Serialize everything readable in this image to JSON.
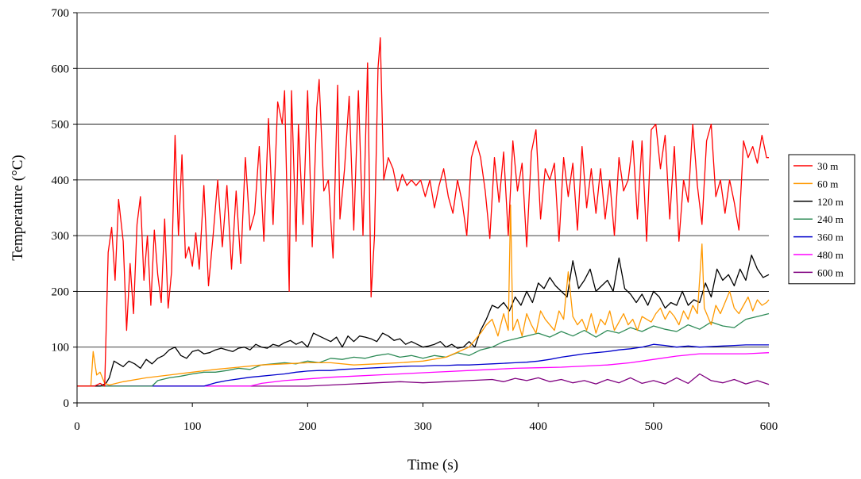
{
  "chart_data": {
    "type": "line",
    "title": "",
    "xlabel": "Time (s)",
    "ylabel": "Temperature (°C)",
    "xlim": [
      0,
      600
    ],
    "ylim": [
      0,
      700
    ],
    "x_ticks": [
      "0",
      "100",
      "200",
      "300",
      "400",
      "500",
      "600"
    ],
    "y_ticks": [
      "0",
      "100",
      "200",
      "300",
      "400",
      "500",
      "600",
      "700"
    ],
    "grid": "horizontal",
    "legend_position": "right",
    "series": [
      {
        "name": "30 m",
        "color": "#ff0000",
        "x": [
          0,
          15,
          20,
          24,
          27,
          30,
          33,
          36,
          40,
          43,
          46,
          49,
          52,
          55,
          58,
          61,
          64,
          67,
          70,
          73,
          76,
          79,
          82,
          85,
          88,
          91,
          94,
          97,
          100,
          103,
          106,
          110,
          114,
          118,
          122,
          126,
          130,
          134,
          138,
          142,
          146,
          150,
          154,
          158,
          162,
          166,
          170,
          174,
          178,
          180,
          184,
          186,
          190,
          192,
          196,
          200,
          204,
          208,
          210,
          214,
          218,
          222,
          226,
          228,
          232,
          236,
          240,
          244,
          248,
          252,
          255,
          258,
          261,
          263,
          266,
          270,
          274,
          278,
          282,
          286,
          290,
          294,
          298,
          302,
          306,
          310,
          314,
          318,
          322,
          326,
          330,
          334,
          338,
          342,
          346,
          350,
          354,
          358,
          362,
          366,
          370,
          374,
          378,
          382,
          386,
          390,
          394,
          398,
          402,
          406,
          410,
          414,
          418,
          422,
          426,
          430,
          434,
          438,
          442,
          446,
          450,
          454,
          458,
          462,
          466,
          470,
          474,
          478,
          482,
          486,
          490,
          494,
          498,
          502,
          506,
          510,
          514,
          518,
          522,
          526,
          530,
          534,
          538,
          542,
          546,
          550,
          554,
          558,
          562,
          566,
          570,
          574,
          578,
          582,
          586,
          590,
          594,
          598,
          600
        ],
        "y": [
          30,
          30,
          35,
          30,
          270,
          315,
          220,
          365,
          290,
          130,
          250,
          160,
          320,
          370,
          220,
          300,
          175,
          310,
          230,
          180,
          330,
          170,
          235,
          480,
          300,
          445,
          260,
          280,
          245,
          305,
          240,
          390,
          210,
          300,
          400,
          280,
          390,
          240,
          380,
          250,
          440,
          310,
          340,
          460,
          290,
          510,
          320,
          540,
          500,
          560,
          200,
          560,
          290,
          500,
          320,
          560,
          280,
          530,
          580,
          380,
          400,
          260,
          570,
          330,
          420,
          550,
          310,
          560,
          300,
          610,
          190,
          300,
          600,
          655,
          400,
          440,
          420,
          380,
          410,
          390,
          400,
          390,
          400,
          370,
          400,
          350,
          390,
          420,
          370,
          340,
          400,
          360,
          300,
          440,
          470,
          440,
          380,
          295,
          440,
          360,
          450,
          300,
          470,
          380,
          430,
          280,
          450,
          490,
          330,
          420,
          400,
          430,
          290,
          440,
          370,
          430,
          310,
          460,
          350,
          420,
          340,
          420,
          330,
          400,
          300,
          440,
          380,
          400,
          470,
          330,
          470,
          290,
          490,
          500,
          420,
          480,
          330,
          460,
          290,
          400,
          360,
          500,
          390,
          320,
          470,
          500,
          370,
          400,
          340,
          400,
          360,
          310,
          470,
          440,
          460,
          430,
          480,
          440,
          440
        ],
        "z": 7
      },
      {
        "name": "60 m",
        "color": "#ff9900",
        "x": [
          0,
          12,
          14,
          17,
          20,
          24,
          28,
          40,
          60,
          80,
          100,
          120,
          140,
          160,
          180,
          200,
          220,
          240,
          260,
          280,
          300,
          320,
          340,
          350,
          355,
          360,
          365,
          370,
          374,
          376,
          378,
          382,
          386,
          390,
          394,
          398,
          402,
          406,
          410,
          414,
          418,
          422,
          426,
          430,
          434,
          438,
          442,
          446,
          450,
          454,
          458,
          462,
          466,
          470,
          474,
          478,
          482,
          486,
          490,
          494,
          498,
          502,
          506,
          510,
          514,
          518,
          522,
          526,
          530,
          534,
          538,
          542,
          544,
          546,
          550,
          554,
          558,
          562,
          566,
          570,
          574,
          578,
          582,
          586,
          590,
          594,
          598,
          600
        ],
        "y": [
          30,
          30,
          92,
          50,
          55,
          35,
          32,
          38,
          45,
          50,
          55,
          60,
          64,
          68,
          70,
          72,
          72,
          68,
          70,
          72,
          75,
          82,
          100,
          125,
          140,
          150,
          120,
          160,
          130,
          355,
          130,
          150,
          120,
          160,
          140,
          125,
          165,
          150,
          140,
          130,
          165,
          150,
          235,
          155,
          140,
          150,
          130,
          160,
          125,
          150,
          140,
          165,
          130,
          145,
          160,
          140,
          150,
          130,
          155,
          150,
          145,
          160,
          170,
          150,
          165,
          155,
          140,
          165,
          150,
          175,
          160,
          285,
          170,
          160,
          140,
          175,
          160,
          180,
          200,
          170,
          160,
          175,
          190,
          165,
          185,
          175,
          180,
          185
        ],
        "z": 6
      },
      {
        "name": "120 m",
        "color": "#000000",
        "x": [
          0,
          20,
          25,
          28,
          32,
          36,
          40,
          45,
          50,
          55,
          60,
          65,
          70,
          75,
          80,
          85,
          90,
          95,
          100,
          105,
          110,
          115,
          120,
          125,
          130,
          135,
          140,
          145,
          150,
          155,
          160,
          165,
          170,
          175,
          180,
          185,
          190,
          195,
          200,
          205,
          210,
          215,
          220,
          225,
          230,
          235,
          240,
          245,
          250,
          255,
          260,
          265,
          270,
          275,
          280,
          285,
          290,
          295,
          300,
          305,
          310,
          315,
          320,
          325,
          330,
          335,
          340,
          345,
          350,
          355,
          360,
          365,
          370,
          375,
          380,
          385,
          390,
          395,
          400,
          405,
          410,
          415,
          420,
          425,
          430,
          435,
          440,
          445,
          450,
          455,
          460,
          465,
          470,
          475,
          480,
          485,
          490,
          495,
          500,
          505,
          510,
          515,
          520,
          525,
          530,
          535,
          540,
          545,
          550,
          555,
          560,
          565,
          570,
          575,
          580,
          585,
          590,
          595,
          600
        ],
        "y": [
          30,
          30,
          35,
          45,
          75,
          70,
          65,
          75,
          70,
          62,
          78,
          70,
          80,
          85,
          95,
          100,
          85,
          80,
          92,
          95,
          88,
          90,
          95,
          98,
          95,
          92,
          98,
          100,
          95,
          105,
          100,
          98,
          105,
          102,
          108,
          112,
          105,
          110,
          100,
          125,
          120,
          115,
          110,
          118,
          100,
          120,
          110,
          120,
          118,
          115,
          110,
          125,
          120,
          112,
          115,
          105,
          110,
          105,
          100,
          102,
          105,
          110,
          100,
          105,
          98,
          100,
          110,
          100,
          130,
          150,
          175,
          170,
          180,
          165,
          190,
          175,
          200,
          180,
          215,
          205,
          225,
          210,
          200,
          190,
          255,
          205,
          220,
          240,
          200,
          210,
          220,
          200,
          260,
          205,
          195,
          180,
          195,
          175,
          200,
          190,
          170,
          180,
          175,
          200,
          175,
          185,
          180,
          215,
          190,
          240,
          220,
          230,
          210,
          240,
          220,
          265,
          240,
          225,
          230
        ],
        "z": 5
      },
      {
        "name": "240 m",
        "color": "#2e8b57",
        "x": [
          0,
          65,
          70,
          80,
          90,
          100,
          110,
          120,
          130,
          140,
          150,
          160,
          170,
          180,
          190,
          200,
          210,
          220,
          230,
          240,
          250,
          260,
          270,
          280,
          290,
          300,
          310,
          320,
          330,
          340,
          350,
          360,
          370,
          380,
          390,
          400,
          410,
          420,
          430,
          440,
          450,
          460,
          470,
          480,
          490,
          500,
          510,
          520,
          530,
          540,
          550,
          560,
          570,
          580,
          590,
          600
        ],
        "y": [
          30,
          30,
          40,
          45,
          48,
          52,
          55,
          55,
          58,
          62,
          60,
          68,
          70,
          72,
          70,
          75,
          72,
          80,
          78,
          82,
          80,
          85,
          88,
          82,
          85,
          80,
          85,
          82,
          90,
          85,
          95,
          100,
          110,
          115,
          120,
          125,
          118,
          128,
          120,
          130,
          118,
          130,
          125,
          135,
          128,
          138,
          132,
          128,
          140,
          132,
          145,
          138,
          135,
          150,
          155,
          160
        ],
        "z": 4
      },
      {
        "name": "360 m",
        "color": "#0000cc",
        "x": [
          0,
          110,
          120,
          130,
          140,
          150,
          160,
          170,
          180,
          190,
          200,
          210,
          220,
          230,
          240,
          250,
          260,
          270,
          280,
          290,
          300,
          310,
          320,
          330,
          340,
          350,
          360,
          370,
          380,
          390,
          400,
          410,
          420,
          430,
          440,
          450,
          460,
          470,
          480,
          490,
          500,
          510,
          520,
          530,
          540,
          550,
          560,
          570,
          580,
          590,
          600
        ],
        "y": [
          30,
          30,
          36,
          40,
          43,
          46,
          48,
          50,
          52,
          55,
          57,
          58,
          58,
          60,
          61,
          62,
          63,
          64,
          65,
          66,
          66,
          67,
          67,
          68,
          68,
          69,
          70,
          71,
          72,
          73,
          75,
          78,
          82,
          85,
          88,
          90,
          92,
          95,
          97,
          100,
          105,
          103,
          100,
          102,
          100,
          101,
          102,
          103,
          104,
          104,
          104
        ],
        "z": 3
      },
      {
        "name": "480 m",
        "color": "#ff00ff",
        "x": [
          0,
          150,
          160,
          180,
          200,
          220,
          240,
          260,
          280,
          300,
          320,
          340,
          360,
          380,
          400,
          420,
          440,
          460,
          480,
          500,
          520,
          540,
          560,
          580,
          600
        ],
        "y": [
          30,
          30,
          35,
          40,
          43,
          46,
          48,
          50,
          52,
          54,
          56,
          58,
          60,
          62,
          63,
          64,
          66,
          68,
          72,
          78,
          84,
          88,
          88,
          88,
          90
        ],
        "z": 2
      },
      {
        "name": "600 m",
        "color": "#800080",
        "x": [
          0,
          200,
          220,
          240,
          260,
          280,
          300,
          320,
          340,
          360,
          370,
          380,
          390,
          400,
          410,
          420,
          430,
          440,
          450,
          460,
          470,
          480,
          490,
          500,
          510,
          520,
          530,
          540,
          550,
          560,
          570,
          580,
          590,
          600
        ],
        "y": [
          30,
          30,
          32,
          34,
          36,
          38,
          36,
          38,
          40,
          42,
          38,
          44,
          40,
          45,
          38,
          42,
          36,
          40,
          34,
          42,
          36,
          45,
          35,
          40,
          34,
          45,
          35,
          52,
          40,
          36,
          42,
          34,
          40,
          33
        ],
        "z": 1
      }
    ]
  }
}
